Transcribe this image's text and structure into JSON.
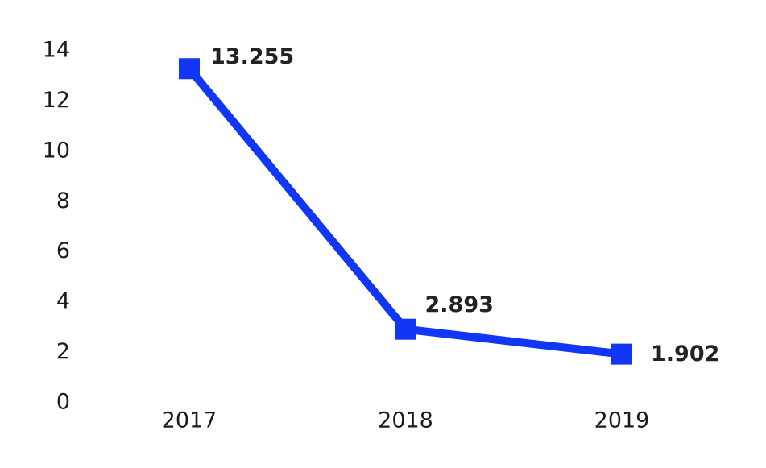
{
  "chart_data": {
    "type": "line",
    "title": "",
    "xlabel": "",
    "ylabel": "",
    "categories": [
      "2017",
      "2018",
      "2019"
    ],
    "series": [
      {
        "values": [
          13.255,
          2.893,
          1.902
        ],
        "data_labels": [
          "13.255",
          "2.893",
          "1.902"
        ],
        "color": "#1236f5",
        "marker": "square"
      }
    ],
    "ylim": [
      0,
      14
    ],
    "yticks": [
      "0",
      "2",
      "4",
      "6",
      "8",
      "10",
      "12",
      "14"
    ],
    "grid": false,
    "legend": "none"
  }
}
